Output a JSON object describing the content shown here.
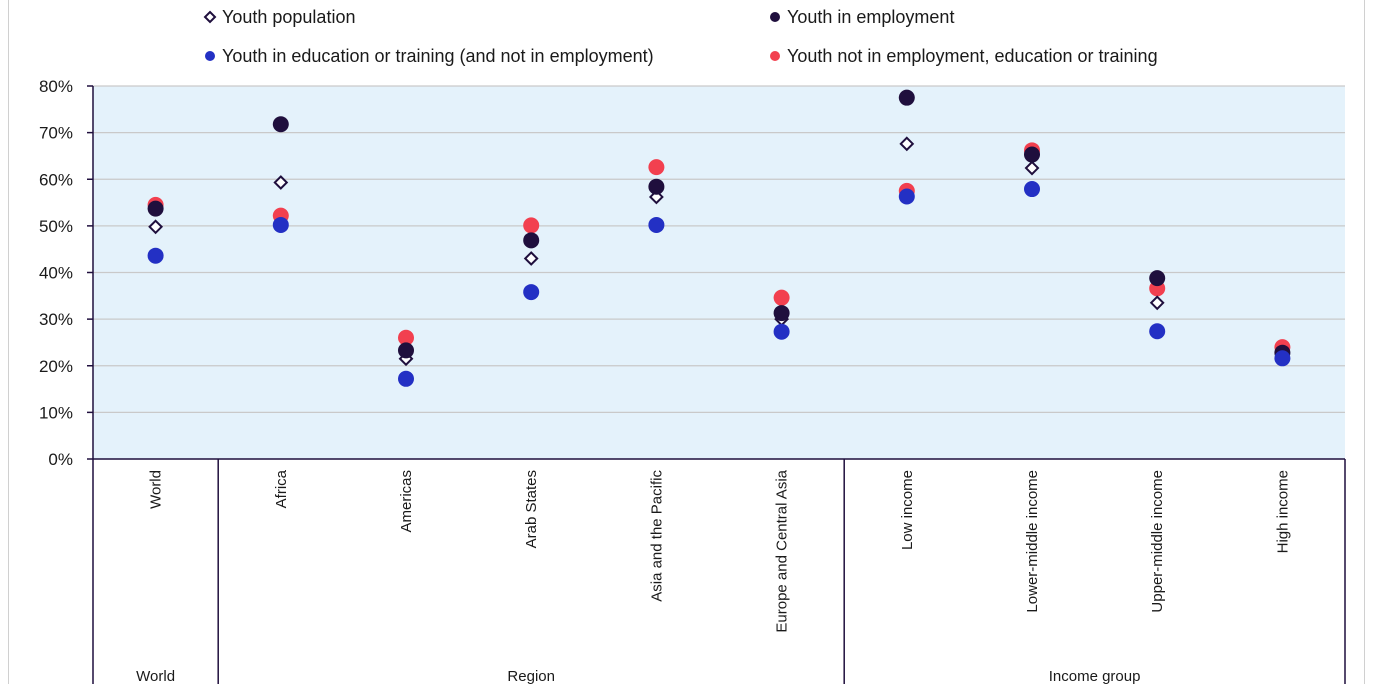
{
  "chart_data": {
    "type": "scatter",
    "legend": [
      {
        "name": "Youth population",
        "marker": "hollow-diamond",
        "color": "#1f0f3d"
      },
      {
        "name": "Youth in employment",
        "marker": "circle",
        "color": "#1f0f3d"
      },
      {
        "name": "Youth in education or training (and not in employment)",
        "marker": "circle",
        "color": "#2330c4"
      },
      {
        "name": "Youth not in employment, education or training",
        "marker": "circle",
        "color": "#f2404f"
      }
    ],
    "legend_position": "top",
    "categories": [
      "World",
      "Africa",
      "Americas",
      "Arab States",
      "Asia and the Pacific",
      "Europe and Central Asia",
      "Low income",
      "Lower-middle income",
      "Upper-middle income",
      "High income"
    ],
    "groups": [
      {
        "label": "World",
        "count": 1
      },
      {
        "label": "Region",
        "count": 5
      },
      {
        "label": "Income group",
        "count": 4
      }
    ],
    "series": [
      {
        "name": "Youth population",
        "values": [
          49.8,
          59.3,
          21.5,
          43.0,
          56.2,
          30.0,
          67.6,
          62.4,
          33.5,
          22.8
        ]
      },
      {
        "name": "Youth in employment",
        "values": [
          53.7,
          71.8,
          23.3,
          46.9,
          58.4,
          31.3,
          77.5,
          65.3,
          38.8,
          22.8
        ]
      },
      {
        "name": "Youth in education or training (and not in employment)",
        "values": [
          43.6,
          50.2,
          17.2,
          35.8,
          50.2,
          27.3,
          56.3,
          57.9,
          27.4,
          21.6
        ]
      },
      {
        "name": "Youth not in employment, education or training",
        "values": [
          54.5,
          52.2,
          26.0,
          50.1,
          62.6,
          34.6,
          57.5,
          66.2,
          36.6,
          24.0
        ]
      }
    ],
    "ylim": [
      0,
      80
    ],
    "yticks": [
      "0%",
      "10%",
      "20%",
      "30%",
      "40%",
      "50%",
      "60%",
      "70%",
      "80%"
    ],
    "grid": true,
    "colors": {
      "plot_background": "#e4f2fb",
      "grid": "#c9c9c9",
      "axis": "#1f0f3d"
    }
  }
}
